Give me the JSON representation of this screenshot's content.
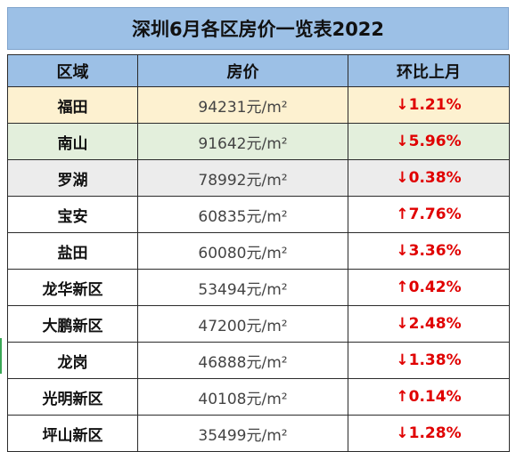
{
  "title": "深圳6月各区房价一览表2022",
  "headers": {
    "district": "区域",
    "price": "房价",
    "change": "环比上月"
  },
  "rows": [
    {
      "district": "福田",
      "price": "94231元/m²",
      "change": "↓1.21%"
    },
    {
      "district": "南山",
      "price": "91642元/m²",
      "change": "↓5.96%"
    },
    {
      "district": "罗湖",
      "price": "78992元/m²",
      "change": "↓0.38%"
    },
    {
      "district": "宝安",
      "price": "60835元/m²",
      "change": "↑7.76%"
    },
    {
      "district": "盐田",
      "price": "60080元/m²",
      "change": "↓3.36%"
    },
    {
      "district": "龙华新区",
      "price": "53494元/m²",
      "change": "↑0.42%"
    },
    {
      "district": "大鹏新区",
      "price": "47200元/m²",
      "change": "↓2.48%"
    },
    {
      "district": "龙岗",
      "price": "46888元/m²",
      "change": "↓1.38%"
    },
    {
      "district": "光明新区",
      "price": "40108元/m²",
      "change": "↑0.14%"
    },
    {
      "district": "坪山新区",
      "price": "35499元/m²",
      "change": "↓1.28%"
    }
  ],
  "colors": {
    "header_bg": "#9cc0e6",
    "row_futian_bg": "#fdf1d0",
    "row_nanshan_bg": "#e3efdc",
    "row_luohu_bg": "#ececec",
    "change_text": "#e00000"
  }
}
